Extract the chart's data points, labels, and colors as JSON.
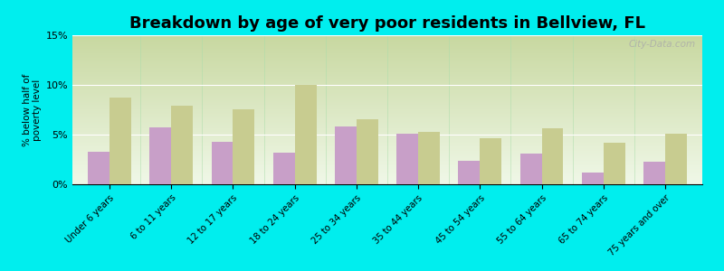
{
  "title": "Breakdown by age of very poor residents in Bellview, FL",
  "ylabel": "% below half of\npoverty level",
  "categories": [
    "Under 6 years",
    "6 to 11 years",
    "12 to 17 years",
    "18 to 24 years",
    "25 to 34 years",
    "35 to 44 years",
    "45 to 54 years",
    "55 to 64 years",
    "65 to 74 years",
    "75 years and over"
  ],
  "bellview_values": [
    3.3,
    5.7,
    4.3,
    3.2,
    5.8,
    5.1,
    2.4,
    3.1,
    1.2,
    2.3
  ],
  "florida_values": [
    8.7,
    7.9,
    7.5,
    10.0,
    6.5,
    5.3,
    4.6,
    5.6,
    4.2,
    5.1
  ],
  "bellview_color": "#c89fc8",
  "florida_color": "#c8cc90",
  "background_color": "#00eeee",
  "ylim": [
    0,
    15
  ],
  "yticks": [
    0,
    5,
    10,
    15
  ],
  "ytick_labels": [
    "0%",
    "5%",
    "10%",
    "15%"
  ],
  "title_fontsize": 13,
  "watermark": "City-Data.com",
  "grad_top": "#c8d8a0",
  "grad_bottom": "#f0f8e8"
}
